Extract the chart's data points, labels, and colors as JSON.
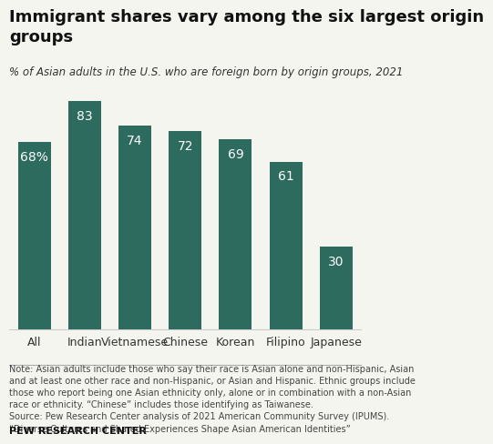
{
  "title": "Immigrant shares vary among the six largest origin\ngroups",
  "subtitle": "% of Asian adults in the U.S. who are foreign born by origin groups, 2021",
  "categories": [
    "All",
    "Indian",
    "Vietnamese",
    "Chinese",
    "Korean",
    "Filipino",
    "Japanese"
  ],
  "values": [
    68,
    83,
    74,
    72,
    69,
    61,
    30
  ],
  "bar_color": "#2d6b5e",
  "label_color": "#ffffff",
  "first_bar_label": "68%",
  "background_color": "#f5f5f0",
  "ylim": [
    0,
    95
  ],
  "note_text": "Note: Asian adults include those who say their race is Asian alone and non-Hispanic, Asian\nand at least one other race and non-Hispanic, or Asian and Hispanic. Ethnic groups include\nthose who report being one Asian ethnicity only, alone or in combination with a non-Asian\nrace or ethnicity. “Chinese” includes those identifying as Taiwanese.\nSource: Pew Research Center analysis of 2021 American Community Survey (IPUMS).\n“Diverse Cultures and Shared Experiences Shape Asian American Identities”",
  "footer": "PEW RESEARCH CENTER",
  "title_fontsize": 13,
  "subtitle_fontsize": 8.5,
  "label_fontsize": 10,
  "xlabel_fontsize": 9,
  "note_fontsize": 7,
  "footer_fontsize": 8
}
